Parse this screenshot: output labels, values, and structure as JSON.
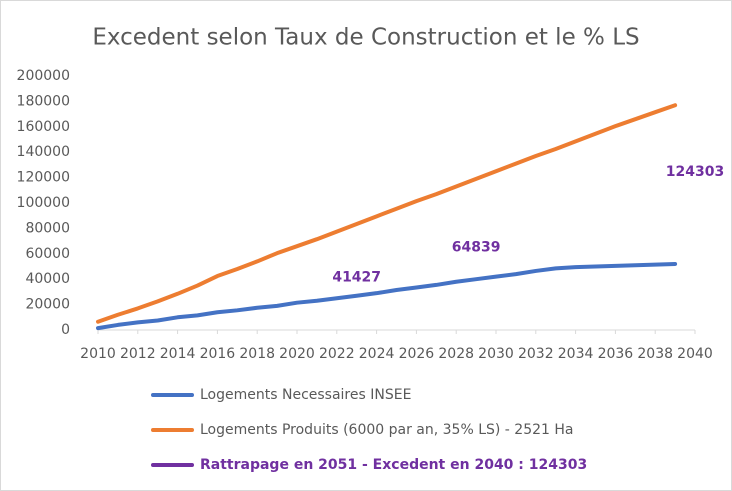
{
  "chart_data": {
    "type": "line",
    "title": "Excedent selon Taux de Construction et le % LS",
    "x": [
      2010,
      2011,
      2012,
      2013,
      2014,
      2015,
      2016,
      2017,
      2018,
      2019,
      2020,
      2021,
      2022,
      2023,
      2024,
      2025,
      2026,
      2027,
      2028,
      2029,
      2030,
      2031,
      2032,
      2033,
      2034,
      2035,
      2036,
      2037,
      2038,
      2039
    ],
    "series": [
      {
        "name": "Logements Necessaires INSEE",
        "color": "#4472c4",
        "values": [
          1500,
          4000,
          6000,
          7500,
          10000,
          11500,
          14000,
          15500,
          17500,
          19000,
          21500,
          23000,
          25000,
          27000,
          29000,
          31500,
          33500,
          35500,
          38000,
          40000,
          42000,
          44000,
          46500,
          48500,
          49500,
          50000,
          50500,
          51000,
          51500,
          52000
        ]
      },
      {
        "name": "Logements Produits (6000 par an, 35% LS) - 2521 Ha",
        "color": "#ed7d31",
        "values": [
          6500,
          12000,
          17000,
          22500,
          28500,
          35000,
          42500,
          48000,
          54000,
          60500,
          66000,
          71500,
          77500,
          83500,
          89500,
          95500,
          101500,
          107000,
          113000,
          119000,
          125000,
          131000,
          137000,
          142500,
          148500,
          154500,
          160500,
          166000,
          171500,
          177000
        ]
      },
      {
        "name": "Rattrapage en 2051 - Excedent en 2040 : 124303",
        "color": "#7030a0",
        "show_line": false,
        "data_labels": true,
        "x": [
          2023,
          2029,
          2040
        ],
        "values": [
          41427,
          64839,
          124303
        ]
      }
    ],
    "xlim": [
      2010,
      2040
    ],
    "xticks": [
      2010,
      2012,
      2014,
      2016,
      2018,
      2020,
      2022,
      2024,
      2026,
      2028,
      2030,
      2032,
      2034,
      2036,
      2038,
      2040
    ],
    "ylim": [
      0,
      200000
    ],
    "yticks": [
      0,
      20000,
      40000,
      60000,
      80000,
      100000,
      120000,
      140000,
      160000,
      180000,
      200000
    ],
    "grid": false,
    "legend": "bottom"
  }
}
